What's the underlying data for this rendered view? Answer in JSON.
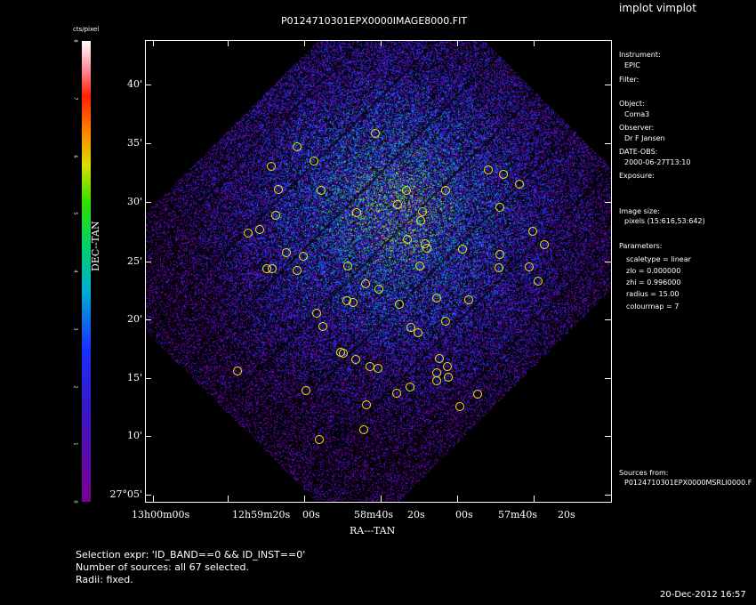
{
  "header": {
    "app_title": "implot vimplot",
    "plot_title": "P0124710301EPX0000IMAGE8000.FIT",
    "timestamp": "20-Dec-2012 16:57"
  },
  "colorbar": {
    "unit": "cts/pixel",
    "ticks": [
      "0",
      "1",
      "2",
      "3",
      "4",
      "5",
      "6",
      "7",
      "8"
    ]
  },
  "axes": {
    "ylabel": "DEC--TAN",
    "xlabel": "RA---TAN",
    "yticks": [
      "40'",
      "35'",
      "30'",
      "25'",
      "20'",
      "15'",
      "10'",
      "27°05'"
    ],
    "xticks": [
      "13h00m00s",
      "12h59m20s",
      "00s",
      "58m40s",
      "20s",
      "00s",
      "57m40s",
      "20s"
    ]
  },
  "panel": {
    "instrument_label": "Instrument:",
    "instrument_value": "EPIC",
    "filter_label": "Filter:",
    "object_label": "Object:",
    "object_value": "Coma3",
    "observer_label": "Observer:",
    "observer_value": "Dr F Jansen",
    "date_label": "DATE-OBS:",
    "date_value": "2000-06-27T13:10",
    "exposure_label": "Exposure:",
    "imagesize_label": "Image size:",
    "imagesize_value": "pixels (15:616,53:642)",
    "parameters_label": "Parameters:",
    "param_scaletype": "scaletype = linear",
    "param_zlo": "zlo  =  0.000000",
    "param_zhi": "zhi  =  0.996000",
    "param_radius": "radius  =  15.00",
    "param_colourmap": "colourmap  =  7",
    "sources_label": "Sources from:",
    "sources_value": "P0124710301EPX0000MSRLI0000.F"
  },
  "footer": {
    "selection": "Selection expr: 'ID_BAND==0 && ID_INST==0'",
    "count": "Number of sources: all 67 selected.",
    "radii": "Radii: fixed."
  },
  "colors": {
    "background": "#000000",
    "source_markers": "#f0f000"
  }
}
